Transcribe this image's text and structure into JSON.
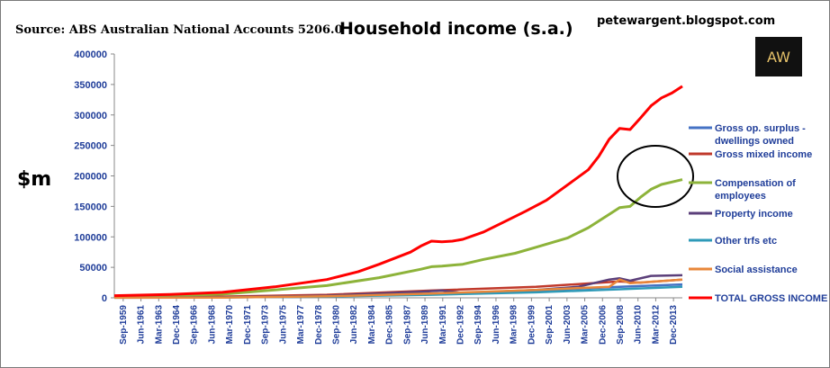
{
  "header": {
    "source": "Source: ABS Australian National Accounts 5206.0",
    "blog": "petewargent.blogspot.com",
    "logo_text": "AW"
  },
  "chart_data": {
    "type": "line",
    "title": "Household income (s.a.)",
    "ylabel": "$m",
    "xlabel": "",
    "ylim": [
      0,
      400000
    ],
    "y_ticks": [
      0,
      50000,
      100000,
      150000,
      200000,
      250000,
      300000,
      350000,
      400000
    ],
    "x_range": [
      1959.67,
      2014.0
    ],
    "x_tick_labels": [
      "Sep-1959",
      "Jun-1961",
      "Mar-1963",
      "Dec-1964",
      "Sep-1966",
      "Jun-1968",
      "Mar-1970",
      "Dec-1971",
      "Sep-1973",
      "Jun-1975",
      "Mar-1977",
      "Dec-1978",
      "Sep-1980",
      "Jun-1982",
      "Mar-1984",
      "Dec-1985",
      "Sep-1987",
      "Jun-1989",
      "Mar-1991",
      "Dec-1992",
      "Sep-1994",
      "Jun-1996",
      "Mar-1998",
      "Dec-1999",
      "Sep-2001",
      "Jun-2003",
      "Mar-2005",
      "Dec-2006",
      "Sep-2008",
      "Jun-2010",
      "Mar-2012",
      "Dec-2013"
    ],
    "grid": false,
    "legend_position": "right",
    "annotation": "ellipse around the right end of Compensation of employees",
    "series": [
      {
        "name": "Gross op. surplus - dwellings owned",
        "color": "#4472c4",
        "x": [
          1959.67,
          1970,
          1980,
          1990,
          2000,
          2008,
          2014
        ],
        "y": [
          500,
          1200,
          3000,
          7000,
          12000,
          18000,
          22000
        ]
      },
      {
        "name": "Gross mixed income",
        "color": "#c0392b",
        "x": [
          1959.67,
          1970,
          1980,
          1990,
          2000,
          2008,
          2010,
          2014
        ],
        "y": [
          1200,
          2000,
          5000,
          12000,
          18000,
          27000,
          25000,
          30000
        ]
      },
      {
        "name": "Compensation of employees",
        "color": "#8db33a",
        "x": [
          1959.67,
          1965,
          1970,
          1975,
          1980,
          1985,
          1989,
          1990,
          1991,
          1993,
          1995,
          1998,
          2000,
          2003,
          2005,
          2007,
          2008,
          2009,
          2010,
          2011,
          2012,
          2013,
          2014
        ],
        "y": [
          2500,
          3500,
          6000,
          13000,
          20000,
          33000,
          47000,
          51000,
          52000,
          55000,
          63000,
          73000,
          83000,
          98000,
          115000,
          137000,
          148000,
          150000,
          165000,
          178000,
          186000,
          190000,
          194000
        ]
      },
      {
        "name": "Property income",
        "color": "#5b3f7a",
        "x": [
          1959.67,
          1970,
          1980,
          1989,
          1991,
          1993,
          2000,
          2004,
          2007,
          2008,
          2009,
          2011,
          2014
        ],
        "y": [
          300,
          800,
          3500,
          10000,
          12000,
          8000,
          13000,
          18000,
          30000,
          32000,
          28000,
          36000,
          37000
        ]
      },
      {
        "name": "Other trfs etc",
        "color": "#2e9ab8",
        "x": [
          1959.67,
          1970,
          1980,
          1990,
          2000,
          2008,
          2014
        ],
        "y": [
          200,
          600,
          2000,
          5000,
          9000,
          14000,
          18000
        ]
      },
      {
        "name": "Social assistance",
        "color": "#e8873a",
        "x": [
          1959.67,
          1970,
          1980,
          1990,
          2000,
          2007,
          2008,
          2009,
          2014
        ],
        "y": [
          100,
          500,
          2500,
          7000,
          13000,
          18000,
          30000,
          24000,
          30000
        ]
      },
      {
        "name": "TOTAL GROSS INCOME",
        "color": "#ff0000",
        "x": [
          1959.67,
          1965,
          1970,
          1975,
          1980,
          1983,
          1985,
          1988,
          1989,
          1990,
          1991,
          1992,
          1993,
          1995,
          1997,
          1999,
          2001,
          2003,
          2005,
          2006,
          2007,
          2008,
          2009,
          2010,
          2011,
          2012,
          2013,
          2014
        ],
        "y": [
          3500,
          5500,
          9000,
          18000,
          30000,
          43000,
          55000,
          75000,
          85000,
          93000,
          92000,
          93000,
          96000,
          108000,
          125000,
          142000,
          160000,
          185000,
          210000,
          232000,
          260000,
          278000,
          276000,
          295000,
          315000,
          328000,
          336000,
          347000
        ]
      }
    ]
  }
}
